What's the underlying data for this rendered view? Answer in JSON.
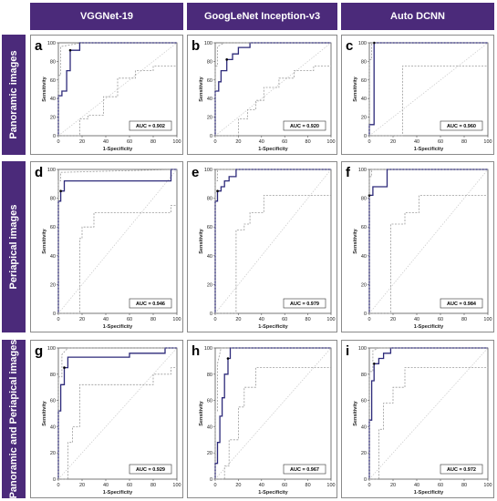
{
  "columns": [
    "VGGNet-19",
    "GoogLeNet Inception-v3",
    "Auto DCNN"
  ],
  "rows": [
    "Panoramic images",
    "Periapical images",
    "Panoramic and Periapical images"
  ],
  "colors": {
    "header_bg": "#4b2a7a",
    "roc_line": "#2d2a7a",
    "ci_line": "#9a9a9a",
    "ref_line": "#c8c8c8"
  },
  "chart_data": [
    {
      "type": "line",
      "label": "a",
      "title": "",
      "xlabel": "1-Specificity",
      "ylabel": "Sensitivity",
      "xlim": [
        0,
        100
      ],
      "ylim": [
        0,
        100
      ],
      "xticks": [
        "0",
        "20",
        "40",
        "60",
        "80",
        "100"
      ],
      "yticks": [
        "0",
        "20",
        "40",
        "60",
        "80",
        "100"
      ],
      "auc": "AUC = 0.902",
      "series": [
        {
          "role": "roc",
          "x": [
            0,
            0,
            3,
            3,
            7,
            7,
            10,
            10,
            18,
            18,
            100
          ],
          "y": [
            0,
            43,
            43,
            48,
            48,
            70,
            70,
            92,
            92,
            100,
            100
          ]
        },
        {
          "role": "ci_upper",
          "x": [
            0,
            0,
            2,
            2,
            20,
            100
          ],
          "y": [
            0,
            65,
            65,
            96,
            100,
            100
          ]
        },
        {
          "role": "ci_lower",
          "x": [
            0,
            18,
            18,
            25,
            25,
            38,
            38,
            50,
            50,
            65,
            65,
            80,
            80,
            100
          ],
          "y": [
            0,
            0,
            18,
            18,
            22,
            22,
            42,
            42,
            62,
            62,
            70,
            70,
            75,
            75
          ]
        }
      ]
    },
    {
      "type": "line",
      "label": "b",
      "title": "",
      "xlabel": "1-Specificity",
      "ylabel": "Sensitivity",
      "xlim": [
        0,
        100
      ],
      "ylim": [
        0,
        100
      ],
      "xticks": [
        "0",
        "20",
        "40",
        "60",
        "80",
        "100"
      ],
      "yticks": [
        "0",
        "20",
        "40",
        "60",
        "80",
        "100"
      ],
      "auc": "AUC = 0.920",
      "series": [
        {
          "role": "roc",
          "x": [
            0,
            0,
            3,
            3,
            5,
            5,
            10,
            10,
            15,
            15,
            20,
            20,
            30,
            30,
            100
          ],
          "y": [
            0,
            48,
            48,
            58,
            58,
            70,
            70,
            82,
            82,
            88,
            88,
            95,
            95,
            100,
            100
          ]
        },
        {
          "role": "ci_upper",
          "x": [
            0,
            0,
            2,
            2,
            8,
            100
          ],
          "y": [
            0,
            75,
            75,
            96,
            100,
            100
          ]
        },
        {
          "role": "ci_lower",
          "x": [
            0,
            20,
            20,
            28,
            28,
            35,
            35,
            42,
            42,
            55,
            55,
            68,
            68,
            85,
            85,
            100
          ],
          "y": [
            0,
            0,
            18,
            18,
            28,
            28,
            38,
            38,
            52,
            52,
            62,
            62,
            70,
            70,
            75,
            75
          ]
        }
      ]
    },
    {
      "type": "line",
      "label": "c",
      "title": "",
      "xlabel": "1-Specificity",
      "ylabel": "Sensitivity",
      "xlim": [
        0,
        100
      ],
      "ylim": [
        0,
        100
      ],
      "xticks": [
        "0",
        "20",
        "40",
        "60",
        "80",
        "100"
      ],
      "yticks": [
        "0",
        "20",
        "40",
        "60",
        "80",
        "100"
      ],
      "auc": "AUC = 0.960",
      "series": [
        {
          "role": "roc",
          "x": [
            0,
            0,
            4,
            4,
            100
          ],
          "y": [
            0,
            12,
            12,
            100,
            100
          ]
        },
        {
          "role": "ci_upper",
          "x": [
            0,
            0,
            2,
            2,
            100
          ],
          "y": [
            0,
            82,
            82,
            100,
            100
          ]
        },
        {
          "role": "ci_lower",
          "x": [
            0,
            28,
            28,
            100
          ],
          "y": [
            0,
            0,
            75,
            75
          ]
        }
      ]
    },
    {
      "type": "line",
      "label": "d",
      "title": "",
      "xlabel": "1-Specificity",
      "ylabel": "Sensitivity",
      "xlim": [
        0,
        100
      ],
      "ylim": [
        0,
        100
      ],
      "xticks": [
        "0",
        "20",
        "40",
        "60",
        "80",
        "100"
      ],
      "yticks": [
        "0",
        "20",
        "40",
        "60",
        "80",
        "100"
      ],
      "auc": "AUC = 0.946",
      "series": [
        {
          "role": "roc",
          "x": [
            0,
            0,
            2,
            2,
            5,
            5,
            95,
            95,
            100
          ],
          "y": [
            0,
            78,
            78,
            85,
            85,
            92,
            92,
            100,
            100
          ]
        },
        {
          "role": "ci_upper",
          "x": [
            0,
            0,
            2,
            2,
            100
          ],
          "y": [
            0,
            92,
            92,
            98,
            100
          ]
        },
        {
          "role": "ci_lower",
          "x": [
            0,
            18,
            18,
            20,
            20,
            30,
            30,
            95,
            95,
            100
          ],
          "y": [
            0,
            0,
            52,
            52,
            60,
            60,
            70,
            70,
            75,
            75
          ]
        }
      ]
    },
    {
      "type": "line",
      "label": "e",
      "title": "",
      "xlabel": "1-Specificity",
      "ylabel": "Sensitivity",
      "xlim": [
        0,
        100
      ],
      "ylim": [
        0,
        100
      ],
      "xticks": [
        "0",
        "20",
        "40",
        "60",
        "80",
        "100"
      ],
      "yticks": [
        "0",
        "20",
        "40",
        "60",
        "80",
        "100"
      ],
      "auc": "AUC = 0.979",
      "series": [
        {
          "role": "roc",
          "x": [
            0,
            0,
            2,
            2,
            5,
            5,
            8,
            8,
            12,
            12,
            18,
            18,
            100
          ],
          "y": [
            0,
            78,
            78,
            85,
            85,
            88,
            88,
            92,
            92,
            95,
            95,
            100,
            100
          ]
        },
        {
          "role": "ci_upper",
          "x": [
            0,
            0,
            2,
            2,
            100
          ],
          "y": [
            0,
            92,
            92,
            100,
            100
          ]
        },
        {
          "role": "ci_lower",
          "x": [
            0,
            18,
            18,
            25,
            25,
            30,
            30,
            42,
            42,
            100
          ],
          "y": [
            0,
            0,
            58,
            58,
            62,
            62,
            70,
            70,
            82,
            82
          ]
        }
      ]
    },
    {
      "type": "line",
      "label": "f",
      "title": "",
      "xlabel": "1-Specificity",
      "ylabel": "Sensitivity",
      "xlim": [
        0,
        100
      ],
      "ylim": [
        0,
        100
      ],
      "xticks": [
        "0",
        "20",
        "40",
        "60",
        "80",
        "100"
      ],
      "yticks": [
        "0",
        "20",
        "40",
        "60",
        "80",
        "100"
      ],
      "auc": "AUC = 0.984",
      "series": [
        {
          "role": "roc",
          "x": [
            0,
            0,
            3,
            3,
            15,
            15,
            100
          ],
          "y": [
            0,
            82,
            82,
            88,
            88,
            100,
            100
          ]
        },
        {
          "role": "ci_upper",
          "x": [
            0,
            0,
            2,
            2,
            100
          ],
          "y": [
            0,
            95,
            95,
            100,
            100
          ]
        },
        {
          "role": "ci_lower",
          "x": [
            0,
            18,
            18,
            30,
            30,
            42,
            42,
            100
          ],
          "y": [
            0,
            0,
            62,
            62,
            70,
            70,
            82,
            82
          ]
        }
      ]
    },
    {
      "type": "line",
      "label": "g",
      "title": "",
      "xlabel": "1-Specificity",
      "ylabel": "Sensitivity",
      "xlim": [
        0,
        100
      ],
      "ylim": [
        0,
        100
      ],
      "xticks": [
        "0",
        "20",
        "40",
        "60",
        "80",
        "100"
      ],
      "yticks": [
        "0",
        "20",
        "40",
        "60",
        "80",
        "100"
      ],
      "auc": "AUC = 0.929",
      "series": [
        {
          "role": "roc",
          "x": [
            0,
            0,
            2,
            2,
            5,
            5,
            8,
            8,
            60,
            60,
            90,
            90,
            100
          ],
          "y": [
            0,
            52,
            52,
            72,
            72,
            85,
            85,
            93,
            93,
            96,
            96,
            100,
            100
          ]
        },
        {
          "role": "ci_upper",
          "x": [
            0,
            0,
            3,
            3,
            8,
            100
          ],
          "y": [
            0,
            78,
            78,
            95,
            100,
            100
          ]
        },
        {
          "role": "ci_lower",
          "x": [
            0,
            8,
            8,
            12,
            12,
            18,
            18,
            80,
            80,
            95,
            95,
            100
          ],
          "y": [
            0,
            0,
            28,
            28,
            40,
            40,
            72,
            72,
            80,
            80,
            85,
            85
          ]
        }
      ]
    },
    {
      "type": "line",
      "label": "h",
      "title": "",
      "xlabel": "1-Specificity",
      "ylabel": "Sensitivity",
      "xlim": [
        0,
        100
      ],
      "ylim": [
        0,
        100
      ],
      "xticks": [
        "0",
        "20",
        "40",
        "60",
        "80",
        "100"
      ],
      "yticks": [
        "0",
        "20",
        "40",
        "60",
        "80",
        "100"
      ],
      "auc": "AUC = 0.967",
      "series": [
        {
          "role": "roc",
          "x": [
            0,
            0,
            2,
            2,
            4,
            4,
            6,
            6,
            8,
            8,
            11,
            11,
            13,
            13,
            100
          ],
          "y": [
            0,
            12,
            12,
            28,
            28,
            48,
            48,
            62,
            62,
            80,
            80,
            92,
            92,
            100,
            100
          ]
        },
        {
          "role": "ci_upper",
          "x": [
            0,
            0,
            2,
            2,
            5,
            100
          ],
          "y": [
            0,
            52,
            52,
            88,
            100,
            100
          ]
        },
        {
          "role": "ci_lower",
          "x": [
            0,
            8,
            8,
            12,
            12,
            20,
            20,
            25,
            25,
            35,
            35,
            100
          ],
          "y": [
            0,
            0,
            10,
            10,
            30,
            30,
            55,
            55,
            70,
            70,
            85,
            85
          ]
        }
      ]
    },
    {
      "type": "line",
      "label": "i",
      "title": "",
      "xlabel": "1-Specificity",
      "ylabel": "Sensitivity",
      "xlim": [
        0,
        100
      ],
      "ylim": [
        0,
        100
      ],
      "xticks": [
        "0",
        "20",
        "40",
        "60",
        "80",
        "100"
      ],
      "yticks": [
        "0",
        "20",
        "40",
        "60",
        "80",
        "100"
      ],
      "auc": "AUC = 0.972",
      "series": [
        {
          "role": "roc",
          "x": [
            0,
            0,
            2,
            2,
            4,
            4,
            8,
            8,
            12,
            12,
            18,
            18,
            100
          ],
          "y": [
            0,
            45,
            45,
            75,
            75,
            88,
            88,
            92,
            92,
            96,
            96,
            100,
            100
          ]
        },
        {
          "role": "ci_upper",
          "x": [
            0,
            0,
            3,
            3,
            8,
            100
          ],
          "y": [
            0,
            82,
            82,
            98,
            100,
            100
          ]
        },
        {
          "role": "ci_lower",
          "x": [
            0,
            8,
            8,
            12,
            12,
            20,
            20,
            30,
            30,
            45,
            45,
            100
          ],
          "y": [
            0,
            0,
            38,
            38,
            58,
            58,
            70,
            70,
            85,
            85,
            85,
            85
          ]
        }
      ]
    }
  ]
}
